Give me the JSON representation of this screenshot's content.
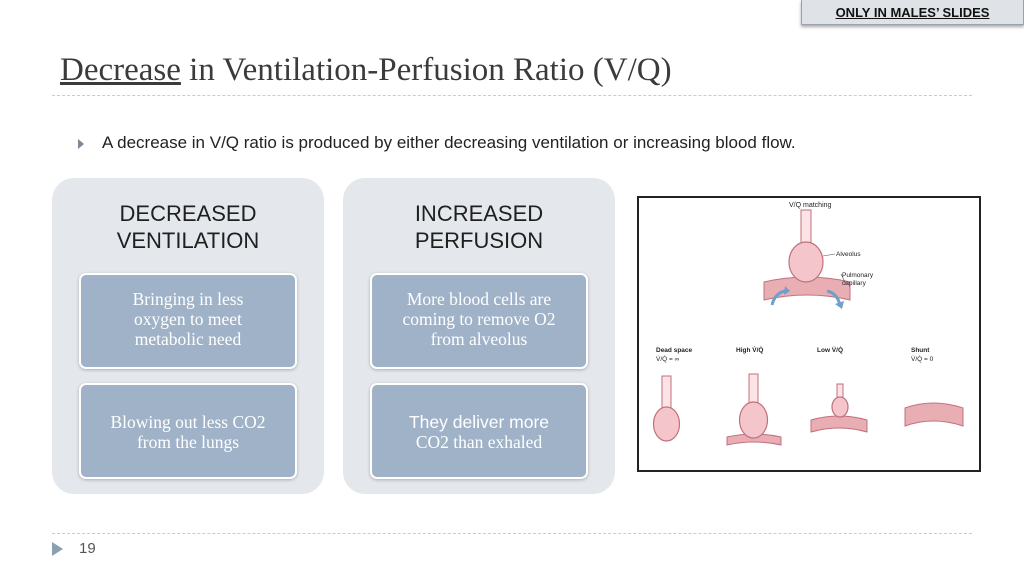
{
  "tag": "ONLY IN MALES’ SLIDES",
  "title": {
    "emphasis": "Decrease",
    "rest": " in Ventilation-Perfusion Ratio (V/Q)"
  },
  "bullet": "A decrease in V/Q ratio is produced by either decreasing ventilation or increasing blood flow.",
  "panels": [
    {
      "heading_line1": "DECREASED",
      "heading_line2": "VENTILATION",
      "cell1": [
        "Bringing in less",
        "oxygen to meet",
        "metabolic need"
      ],
      "cell2": [
        "Blowing out less CO2",
        "from the lungs"
      ]
    },
    {
      "heading_line1": "INCREASED",
      "heading_line2": "PERFUSION",
      "cell1": [
        "More blood cells are",
        "coming to remove O2",
        "from alveolus"
      ],
      "cell2": [
        "They deliver more",
        "CO2 than exhaled"
      ]
    }
  ],
  "figure": {
    "caption": "V/Q matching",
    "label_alveolus": "Alveolus",
    "label_capillary_1": "Pulmonary",
    "label_capillary_2": "capillary",
    "states": [
      {
        "name": "Dead space",
        "ratio": "V̇/Q̇ = ∞"
      },
      {
        "name": "High V̇/Q̇",
        "ratio": ""
      },
      {
        "name": "Low V̇/Q̇",
        "ratio": ""
      },
      {
        "name": "Shunt",
        "ratio": "V̇/Q̇ = 0"
      }
    ],
    "colors": {
      "alveolus_fill": "#f4c6cc",
      "alveolus_stroke": "#c0707c",
      "capillary_fill": "#e8aeb4",
      "arrow": "#6fa0cc"
    }
  },
  "page_number": "19"
}
